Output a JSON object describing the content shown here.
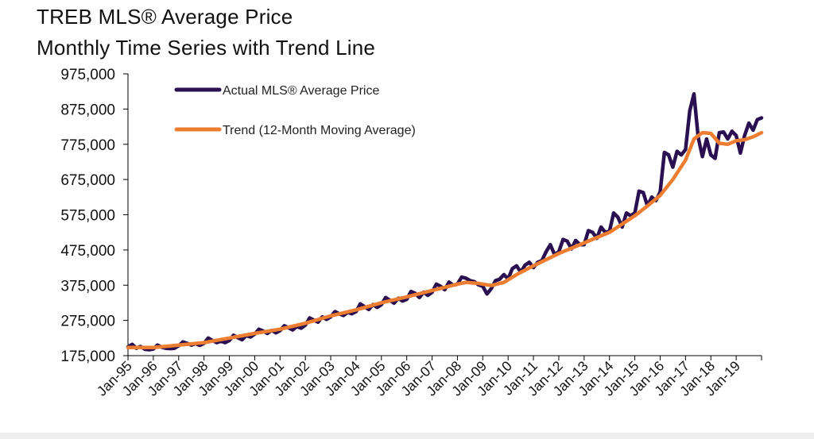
{
  "title_line1": "TREB MLS® Average Price",
  "title_line2": "Monthly Time Series with Trend Line",
  "colors": {
    "actual": "#2a1050",
    "trend": "#ed7d31",
    "axis": "#000000"
  },
  "chart_data": {
    "type": "line",
    "title": "TREB MLS® Average Price — Monthly Time Series with Trend Line",
    "xlabel": "",
    "ylabel": "",
    "ylim": [
      175000,
      975000
    ],
    "yticks": [
      175000,
      275000,
      375000,
      475000,
      575000,
      675000,
      775000,
      875000,
      975000
    ],
    "ytick_labels": [
      "175,000",
      "275,000",
      "375,000",
      "475,000",
      "575,000",
      "675,000",
      "775,000",
      "875,000",
      "975,000"
    ],
    "x_start_year": 1995,
    "x_end_month_index": 300,
    "xtick_labels": [
      "Jan-95",
      "Jan-96",
      "Jan-97",
      "Jan-98",
      "Jan-99",
      "Jan-00",
      "Jan-01",
      "Jan-02",
      "Jan-03",
      "Jan-04",
      "Jan-05",
      "Jan-06",
      "Jan-07",
      "Jan-08",
      "Jan-09",
      "Jan-10",
      "Jan-11",
      "Jan-12",
      "Jan-13",
      "Jan-14",
      "Jan-15",
      "Jan-16",
      "Jan-17",
      "Jan-18",
      "Jan-19"
    ],
    "legend": [
      "Actual MLS® Average Price",
      "Trend (12-Month Moving Average)"
    ],
    "legend_position": "top-left",
    "series": [
      {
        "name": "Actual MLS® Average Price",
        "points": [
          [
            0,
            200000
          ],
          [
            2,
            207000
          ],
          [
            4,
            196000
          ],
          [
            6,
            201000
          ],
          [
            8,
            193000
          ],
          [
            10,
            192000
          ],
          [
            12,
            194000
          ],
          [
            14,
            205000
          ],
          [
            16,
            199000
          ],
          [
            18,
            196000
          ],
          [
            20,
            195000
          ],
          [
            22,
            196000
          ],
          [
            24,
            203000
          ],
          [
            26,
            214000
          ],
          [
            28,
            210000
          ],
          [
            30,
            205000
          ],
          [
            32,
            209000
          ],
          [
            34,
            204000
          ],
          [
            36,
            210000
          ],
          [
            38,
            225000
          ],
          [
            40,
            218000
          ],
          [
            42,
            212000
          ],
          [
            44,
            216000
          ],
          [
            46,
            212000
          ],
          [
            48,
            218000
          ],
          [
            50,
            233000
          ],
          [
            52,
            226000
          ],
          [
            54,
            220000
          ],
          [
            56,
            232000
          ],
          [
            58,
            228000
          ],
          [
            60,
            236000
          ],
          [
            62,
            250000
          ],
          [
            64,
            245000
          ],
          [
            66,
            238000
          ],
          [
            68,
            247000
          ],
          [
            70,
            240000
          ],
          [
            72,
            246000
          ],
          [
            74,
            260000
          ],
          [
            76,
            254000
          ],
          [
            78,
            248000
          ],
          [
            80,
            258000
          ],
          [
            82,
            253000
          ],
          [
            84,
            262000
          ],
          [
            86,
            282000
          ],
          [
            88,
            276000
          ],
          [
            90,
            270000
          ],
          [
            92,
            285000
          ],
          [
            94,
            278000
          ],
          [
            96,
            285000
          ],
          [
            98,
            300000
          ],
          [
            100,
            294000
          ],
          [
            102,
            289000
          ],
          [
            104,
            298000
          ],
          [
            106,
            294000
          ],
          [
            108,
            300000
          ],
          [
            110,
            322000
          ],
          [
            112,
            314000
          ],
          [
            114,
            306000
          ],
          [
            116,
            320000
          ],
          [
            118,
            312000
          ],
          [
            120,
            320000
          ],
          [
            122,
            340000
          ],
          [
            124,
            332000
          ],
          [
            126,
            324000
          ],
          [
            128,
            338000
          ],
          [
            130,
            330000
          ],
          [
            132,
            335000
          ],
          [
            134,
            357000
          ],
          [
            136,
            352000
          ],
          [
            138,
            340000
          ],
          [
            140,
            355000
          ],
          [
            142,
            346000
          ],
          [
            144,
            355000
          ],
          [
            146,
            378000
          ],
          [
            148,
            372000
          ],
          [
            150,
            362000
          ],
          [
            152,
            384000
          ],
          [
            154,
            375000
          ],
          [
            156,
            378000
          ],
          [
            158,
            398000
          ],
          [
            160,
            395000
          ],
          [
            162,
            388000
          ],
          [
            164,
            385000
          ],
          [
            166,
            376000
          ],
          [
            168,
            372000
          ],
          [
            170,
            350000
          ],
          [
            172,
            365000
          ],
          [
            174,
            388000
          ],
          [
            176,
            392000
          ],
          [
            178,
            405000
          ],
          [
            180,
            393000
          ],
          [
            182,
            422000
          ],
          [
            184,
            430000
          ],
          [
            186,
            412000
          ],
          [
            188,
            432000
          ],
          [
            190,
            440000
          ],
          [
            192,
            425000
          ],
          [
            194,
            440000
          ],
          [
            196,
            445000
          ],
          [
            198,
            470000
          ],
          [
            200,
            490000
          ],
          [
            202,
            462000
          ],
          [
            204,
            470000
          ],
          [
            206,
            505000
          ],
          [
            208,
            500000
          ],
          [
            210,
            478000
          ],
          [
            212,
            502000
          ],
          [
            214,
            490000
          ],
          [
            216,
            490000
          ],
          [
            218,
            530000
          ],
          [
            220,
            525000
          ],
          [
            222,
            508000
          ],
          [
            224,
            540000
          ],
          [
            226,
            525000
          ],
          [
            228,
            528000
          ],
          [
            230,
            580000
          ],
          [
            232,
            568000
          ],
          [
            234,
            540000
          ],
          [
            236,
            580000
          ],
          [
            238,
            572000
          ],
          [
            240,
            580000
          ],
          [
            242,
            642000
          ],
          [
            244,
            638000
          ],
          [
            246,
            600000
          ],
          [
            248,
            625000
          ],
          [
            250,
            615000
          ],
          [
            252,
            640000
          ],
          [
            254,
            752000
          ],
          [
            256,
            745000
          ],
          [
            258,
            710000
          ],
          [
            260,
            755000
          ],
          [
            262,
            745000
          ],
          [
            264,
            760000
          ],
          [
            266,
            870000
          ],
          [
            268,
            918000
          ],
          [
            270,
            795000
          ],
          [
            272,
            740000
          ],
          [
            274,
            790000
          ],
          [
            276,
            745000
          ],
          [
            278,
            735000
          ],
          [
            280,
            808000
          ],
          [
            282,
            810000
          ],
          [
            284,
            790000
          ],
          [
            286,
            812000
          ],
          [
            288,
            800000
          ],
          [
            290,
            750000
          ],
          [
            292,
            800000
          ],
          [
            294,
            835000
          ],
          [
            296,
            815000
          ],
          [
            298,
            845000
          ],
          [
            300,
            850000
          ]
        ]
      },
      {
        "name": "Trend (12-Month Moving Average)",
        "points": [
          [
            0,
            198000
          ],
          [
            12,
            198000
          ],
          [
            24,
            205000
          ],
          [
            36,
            212000
          ],
          [
            48,
            225000
          ],
          [
            60,
            238000
          ],
          [
            72,
            250000
          ],
          [
            84,
            267000
          ],
          [
            96,
            288000
          ],
          [
            108,
            305000
          ],
          [
            120,
            325000
          ],
          [
            132,
            342000
          ],
          [
            144,
            360000
          ],
          [
            156,
            378000
          ],
          [
            160,
            383000
          ],
          [
            166,
            380000
          ],
          [
            172,
            374000
          ],
          [
            178,
            383000
          ],
          [
            184,
            405000
          ],
          [
            192,
            430000
          ],
          [
            204,
            465000
          ],
          [
            216,
            495000
          ],
          [
            228,
            525000
          ],
          [
            240,
            572000
          ],
          [
            246,
            600000
          ],
          [
            252,
            630000
          ],
          [
            258,
            675000
          ],
          [
            264,
            730000
          ],
          [
            268,
            790000
          ],
          [
            272,
            808000
          ],
          [
            276,
            806000
          ],
          [
            280,
            778000
          ],
          [
            284,
            775000
          ],
          [
            288,
            785000
          ],
          [
            292,
            788000
          ],
          [
            296,
            796000
          ],
          [
            300,
            808000
          ]
        ]
      }
    ]
  }
}
